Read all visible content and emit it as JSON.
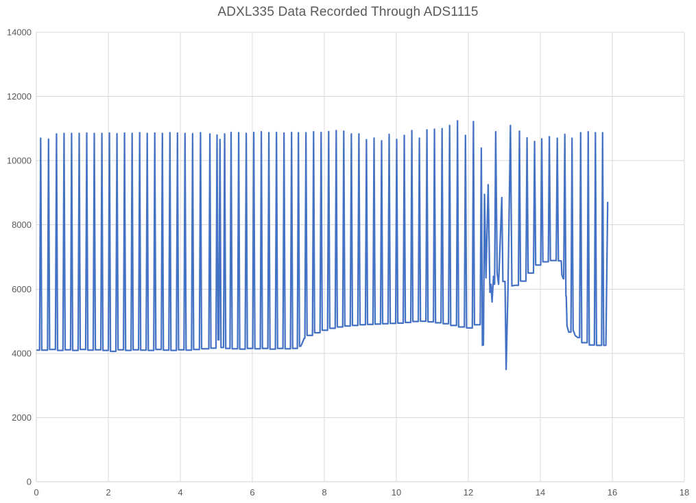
{
  "window": {
    "background_color": "#ffffff"
  },
  "chart_data": {
    "type": "line",
    "title": "ADXL335 Data Recorded Through ADS1115",
    "xlabel": "",
    "ylabel": "",
    "xlim": [
      0,
      18
    ],
    "ylim": [
      0,
      14000
    ],
    "x_ticks": [
      0,
      2,
      4,
      6,
      8,
      10,
      12,
      14,
      16,
      18
    ],
    "y_ticks": [
      0,
      2000,
      4000,
      6000,
      8000,
      10000,
      12000,
      14000
    ],
    "grid": true,
    "legend": "none",
    "line_color": "#4472C4",
    "gridline_color": "#D9D9D9",
    "axis_line_color": "#D0D0D0",
    "label_color": "#595959",
    "title_color": "#595959",
    "description": "Square-wave-like acceleration signal oscillating between ~4100 and ~10900 counts, with rising low plateau after x=7.3, irregular transients near x=12.4-13.2 including a dip to ~3500, an elevated baseline hump (~6900) from x=13.4-14.6, and a final partial peak of ~8700 at x=15.87.",
    "waveform": [
      {
        "mode": "points",
        "points": [
          [
            0.02,
            4100
          ],
          [
            0.09,
            4100
          ]
        ]
      },
      {
        "mode": "spikes",
        "spike_halfwidth": 0.03,
        "spikes": [
          [
            0.12,
            10700,
            4100
          ],
          [
            0.34,
            10670,
            4120
          ],
          [
            0.56,
            10830,
            4090
          ],
          [
            0.77,
            10850,
            4110
          ],
          [
            0.98,
            10850,
            4090
          ],
          [
            1.19,
            10850,
            4120
          ],
          [
            1.4,
            10860,
            4100
          ],
          [
            1.61,
            10850,
            4110
          ],
          [
            1.82,
            10850,
            4090
          ],
          [
            2.03,
            10860,
            4060
          ],
          [
            2.24,
            10840,
            4110
          ],
          [
            2.45,
            10860,
            4090
          ],
          [
            2.66,
            10850,
            4110
          ],
          [
            2.87,
            10870,
            4100
          ],
          [
            3.08,
            10850,
            4090
          ],
          [
            3.29,
            10860,
            4120
          ],
          [
            3.5,
            10850,
            4100
          ],
          [
            3.71,
            10870,
            4090
          ],
          [
            3.92,
            10860,
            4110
          ],
          [
            4.13,
            10850,
            4100
          ],
          [
            4.34,
            10840,
            4120
          ],
          [
            4.56,
            10870,
            4140
          ],
          [
            4.82,
            10830,
            4160
          ],
          [
            5.02,
            10800,
            4420
          ],
          [
            5.1,
            10660,
            4180
          ],
          [
            5.23,
            10835,
            4150
          ],
          [
            5.41,
            10880,
            4140
          ],
          [
            5.62,
            10870,
            4130
          ],
          [
            5.83,
            10850,
            4150
          ],
          [
            6.04,
            10880,
            4140
          ],
          [
            6.25,
            10900,
            4150
          ],
          [
            6.46,
            10870,
            4130
          ],
          [
            6.67,
            10880,
            4150
          ],
          [
            6.88,
            10860,
            4140
          ],
          [
            7.09,
            10880,
            4150
          ],
          [
            7.28,
            10870,
            4220
          ]
        ]
      },
      {
        "mode": "points",
        "points": [
          [
            7.34,
            4220
          ],
          [
            7.38,
            4300
          ],
          [
            7.44,
            4470
          ]
        ]
      },
      {
        "mode": "spikes",
        "spike_halfwidth": 0.03,
        "spikes": [
          [
            7.49,
            10870,
            4560
          ],
          [
            7.7,
            10900,
            4640
          ],
          [
            7.91,
            10880,
            4720
          ],
          [
            8.12,
            10905,
            4780
          ],
          [
            8.33,
            10940,
            4820
          ],
          [
            8.54,
            10920,
            4850
          ],
          [
            8.75,
            10835,
            4870
          ],
          [
            8.96,
            10835,
            4890
          ],
          [
            9.17,
            10655,
            4900
          ],
          [
            9.38,
            10705,
            4910
          ],
          [
            9.59,
            10620,
            4920
          ],
          [
            9.8,
            10820,
            4930
          ],
          [
            10.01,
            10660,
            4940
          ],
          [
            10.22,
            10790,
            4960
          ],
          [
            10.43,
            10940,
            4990
          ],
          [
            10.64,
            10700,
            5000
          ],
          [
            10.85,
            10960,
            4980
          ],
          [
            11.06,
            10980,
            4950
          ],
          [
            11.27,
            11000,
            4920
          ],
          [
            11.48,
            11100,
            4870
          ],
          [
            11.7,
            11240,
            4820
          ],
          [
            11.92,
            10790,
            4790
          ],
          [
            12.14,
            11220,
            4890
          ],
          [
            12.36,
            10390,
            4250
          ]
        ]
      },
      {
        "mode": "points",
        "points": [
          [
            12.42,
            4260
          ],
          [
            12.45,
            8950
          ],
          [
            12.49,
            6350
          ],
          [
            12.55,
            9250
          ],
          [
            12.6,
            5900
          ],
          [
            12.63,
            6150
          ],
          [
            12.66,
            5600
          ],
          [
            12.7,
            6400
          ],
          [
            12.73,
            6150
          ],
          [
            12.76,
            10900
          ],
          [
            12.8,
            6500
          ],
          [
            12.84,
            6150
          ],
          [
            12.93,
            8850
          ],
          [
            12.96,
            6240
          ],
          [
            13.02,
            6240
          ],
          [
            13.05,
            3500
          ],
          [
            13.1,
            6000
          ],
          [
            13.17,
            11100
          ],
          [
            13.21,
            6100
          ],
          [
            13.3,
            6120
          ]
        ]
      },
      {
        "mode": "spikes",
        "spike_halfwidth": 0.03,
        "spikes": [
          [
            13.42,
            10920,
            6250
          ],
          [
            13.63,
            10710,
            6500
          ],
          [
            13.84,
            10600,
            6750
          ],
          [
            14.04,
            10680,
            6850
          ],
          [
            14.25,
            10750,
            6890
          ],
          [
            14.47,
            10700,
            6880
          ]
        ]
      },
      {
        "mode": "points",
        "points": [
          [
            14.58,
            6880
          ],
          [
            14.6,
            6430
          ],
          [
            14.64,
            6320
          ]
        ]
      },
      {
        "mode": "spikes",
        "spike_halfwidth": 0.03,
        "spikes": [
          [
            14.68,
            10820,
            5780
          ]
        ]
      },
      {
        "mode": "points",
        "points": [
          [
            14.72,
            5780
          ],
          [
            14.74,
            4850
          ],
          [
            14.79,
            4660
          ]
        ]
      },
      {
        "mode": "spikes",
        "spike_halfwidth": 0.03,
        "spikes": [
          [
            14.88,
            10700,
            4700
          ]
        ]
      },
      {
        "mode": "points",
        "points": [
          [
            14.92,
            4700
          ],
          [
            14.97,
            4550
          ],
          [
            15.04,
            4490
          ]
        ]
      },
      {
        "mode": "spikes",
        "spike_halfwidth": 0.03,
        "spikes": [
          [
            15.12,
            10870,
            4330
          ],
          [
            15.33,
            10900,
            4260
          ],
          [
            15.53,
            10870,
            4250
          ],
          [
            15.73,
            10870,
            4250
          ]
        ]
      },
      {
        "mode": "points",
        "points": [
          [
            15.82,
            4250
          ],
          [
            15.87,
            8700
          ]
        ]
      }
    ]
  }
}
